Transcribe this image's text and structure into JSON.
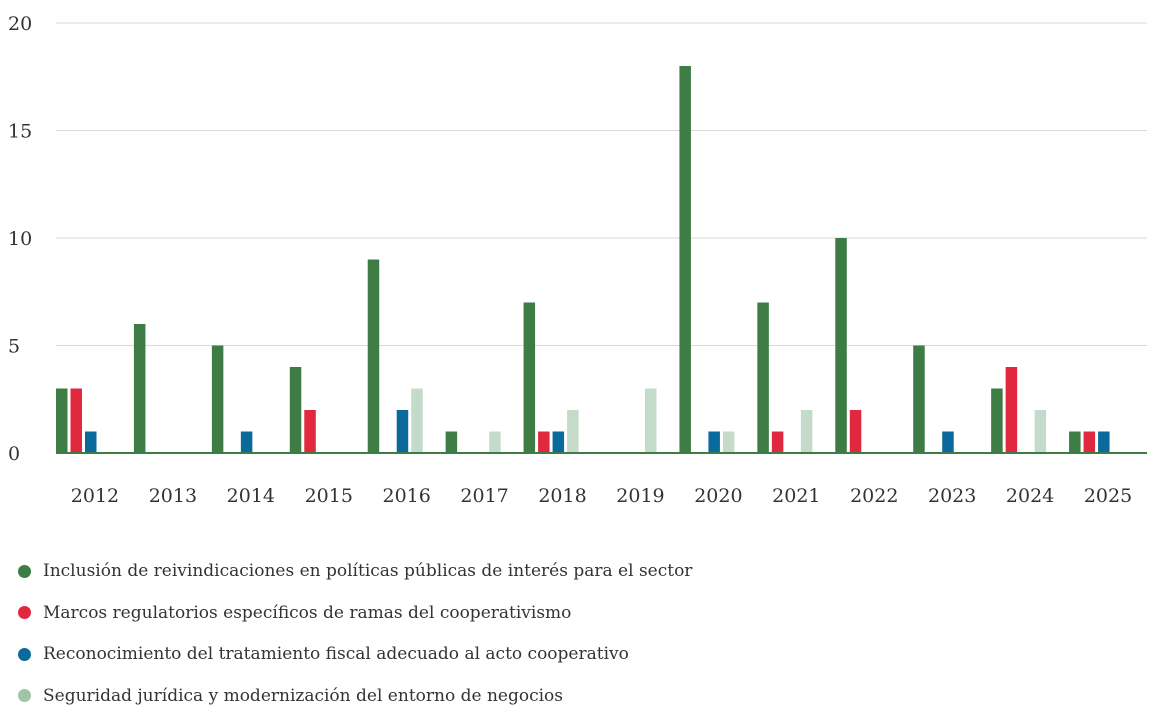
{
  "chart_data": {
    "type": "bar",
    "title": "",
    "xlabel": "",
    "ylabel": "",
    "categories": [
      "2012",
      "2013",
      "2014",
      "2015",
      "2016",
      "2017",
      "2018",
      "2019",
      "2020",
      "2021",
      "2022",
      "2023",
      "2024",
      "2025"
    ],
    "ylim": [
      0,
      20
    ],
    "yticks": [
      "0",
      "5",
      "10",
      "15",
      "20"
    ],
    "grid": true,
    "legend_position": "bottom",
    "series": [
      {
        "name": "Inclusión de reivindicaciones en políticas públicas de interés para el sector",
        "color": "#3d7d45",
        "values": [
          3,
          6,
          5,
          4,
          9,
          1,
          7,
          0,
          18,
          7,
          10,
          5,
          3,
          1
        ]
      },
      {
        "name": "Marcos regulatorios específicos de ramas del cooperativismo",
        "color": "#e0283f",
        "values": [
          3,
          0,
          0,
          2,
          0,
          0,
          1,
          0,
          0,
          1,
          2,
          0,
          4,
          1
        ]
      },
      {
        "name": "Reconocimiento del tratamiento fiscal adecuado al acto cooperativo",
        "color": "#0a6a9b",
        "values": [
          1,
          0,
          1,
          0,
          2,
          0,
          1,
          0,
          1,
          0,
          0,
          1,
          0,
          1
        ]
      },
      {
        "name": "Seguridad jurídica y modernización del entorno de negocios",
        "color": "#c5dbca",
        "values": [
          0,
          0,
          0,
          0,
          3,
          1,
          2,
          3,
          1,
          2,
          0,
          0,
          2,
          0
        ]
      }
    ],
    "legend_dot_colors": [
      "#3d7d45",
      "#e0283f",
      "#0a6a9b",
      "#9ec5a4"
    ],
    "gridline_color": "#d9d9d9",
    "baseline_color": "#3d7d45"
  }
}
